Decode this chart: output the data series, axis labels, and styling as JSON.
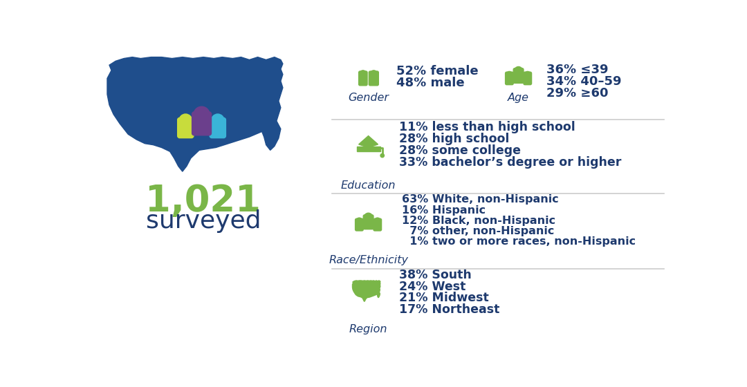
{
  "background_color": "#ffffff",
  "map_color": "#1f4e8c",
  "green_color": "#7ab648",
  "dark_blue_color": "#1e3a6e",
  "surveyed_number": "1,021",
  "surveyed_label": "surveyed",
  "person_colors": [
    "#c8dc3c",
    "#6b3f8c",
    "#3ab4d8"
  ],
  "divider_color": "#cccccc",
  "section_labels": [
    "Gender",
    "Age",
    "Education",
    "Race/Ethnicity",
    "Region"
  ],
  "gender_lines": [
    "52% female",
    "48% male"
  ],
  "age_lines": [
    "36% ≤39",
    "34% 40–59",
    "29% ≥60"
  ],
  "edu_lines": [
    "11% less than high school",
    "28% high school",
    "28% some college",
    "33% bachelor’s degree or higher"
  ],
  "race_lines": [
    "63% White, non-Hispanic",
    "16% Hispanic",
    "12% Black, non-Hispanic",
    "  7% other, non-Hispanic",
    "  1% two or more races, non-Hispanic"
  ],
  "region_lines": [
    "38% South",
    "24% West",
    "21% Midwest",
    "17% Northeast"
  ]
}
